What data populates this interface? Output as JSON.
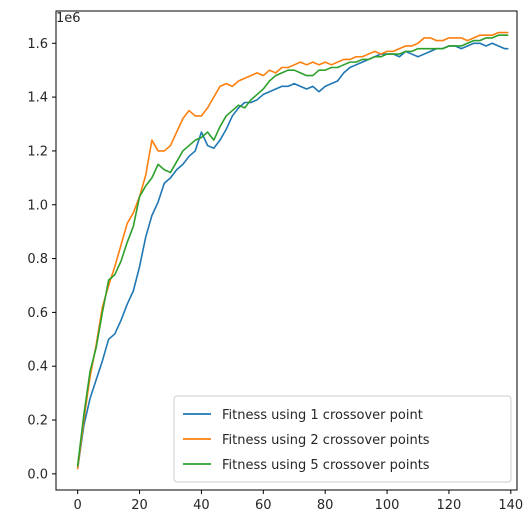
{
  "chart_data": {
    "type": "line",
    "title": "",
    "xlabel": "",
    "ylabel": "",
    "y_offset_label": "1e6",
    "y_scale": 1000000,
    "xlim": [
      -7,
      142
    ],
    "ylim": [
      -0.06,
      1.72
    ],
    "xticks": [
      0,
      20,
      40,
      60,
      80,
      100,
      120,
      140
    ],
    "yticks": [
      0.0,
      0.2,
      0.4,
      0.6,
      0.8,
      1.0,
      1.2,
      1.4,
      1.6
    ],
    "ytick_labels": [
      "0.0",
      "0.2",
      "0.4",
      "0.6",
      "0.8",
      "1.0",
      "1.2",
      "1.4",
      "1.6"
    ],
    "grid": false,
    "legend_position": "lower-right",
    "series": [
      {
        "name": "Fitness using 1 crossover point",
        "color": "#1f77b4",
        "x": [
          0,
          2,
          4,
          6,
          8,
          10,
          12,
          14,
          16,
          18,
          20,
          22,
          24,
          26,
          28,
          30,
          32,
          34,
          36,
          38,
          40,
          42,
          44,
          46,
          48,
          50,
          52,
          54,
          56,
          58,
          60,
          62,
          64,
          66,
          68,
          70,
          72,
          74,
          76,
          78,
          80,
          82,
          84,
          86,
          88,
          90,
          92,
          94,
          96,
          98,
          100,
          102,
          104,
          106,
          108,
          110,
          112,
          114,
          116,
          118,
          120,
          122,
          124,
          126,
          128,
          130,
          132,
          134,
          136,
          138,
          139
        ],
        "values": [
          0.02,
          0.18,
          0.28,
          0.35,
          0.42,
          0.5,
          0.52,
          0.57,
          0.63,
          0.68,
          0.77,
          0.88,
          0.96,
          1.01,
          1.08,
          1.1,
          1.13,
          1.15,
          1.18,
          1.2,
          1.27,
          1.22,
          1.21,
          1.24,
          1.28,
          1.33,
          1.36,
          1.38,
          1.38,
          1.39,
          1.41,
          1.42,
          1.43,
          1.44,
          1.44,
          1.45,
          1.44,
          1.43,
          1.44,
          1.42,
          1.44,
          1.45,
          1.46,
          1.49,
          1.51,
          1.52,
          1.53,
          1.54,
          1.55,
          1.56,
          1.56,
          1.56,
          1.55,
          1.57,
          1.56,
          1.55,
          1.56,
          1.57,
          1.58,
          1.58,
          1.59,
          1.59,
          1.58,
          1.59,
          1.6,
          1.6,
          1.59,
          1.6,
          1.59,
          1.58,
          1.58
        ]
      },
      {
        "name": "Fitness using 2 crossover points",
        "color": "#ff7f0e",
        "x": [
          0,
          2,
          4,
          6,
          8,
          10,
          12,
          14,
          16,
          18,
          20,
          22,
          24,
          26,
          28,
          30,
          32,
          34,
          36,
          38,
          40,
          42,
          44,
          46,
          48,
          50,
          52,
          54,
          56,
          58,
          60,
          62,
          64,
          66,
          68,
          70,
          72,
          74,
          76,
          78,
          80,
          82,
          84,
          86,
          88,
          90,
          92,
          94,
          96,
          98,
          100,
          102,
          104,
          106,
          108,
          110,
          112,
          114,
          116,
          118,
          120,
          122,
          124,
          126,
          128,
          130,
          132,
          134,
          136,
          138,
          139
        ],
        "values": [
          0.02,
          0.2,
          0.36,
          0.48,
          0.62,
          0.7,
          0.77,
          0.85,
          0.93,
          0.97,
          1.03,
          1.11,
          1.24,
          1.2,
          1.2,
          1.22,
          1.27,
          1.32,
          1.35,
          1.33,
          1.33,
          1.36,
          1.4,
          1.44,
          1.45,
          1.44,
          1.46,
          1.47,
          1.48,
          1.49,
          1.48,
          1.5,
          1.49,
          1.51,
          1.51,
          1.52,
          1.53,
          1.52,
          1.53,
          1.52,
          1.53,
          1.52,
          1.53,
          1.54,
          1.54,
          1.55,
          1.55,
          1.56,
          1.57,
          1.56,
          1.57,
          1.57,
          1.58,
          1.59,
          1.59,
          1.6,
          1.62,
          1.62,
          1.61,
          1.61,
          1.62,
          1.62,
          1.62,
          1.61,
          1.62,
          1.63,
          1.63,
          1.63,
          1.64,
          1.64,
          1.64
        ]
      },
      {
        "name": "Fitness using 5 crossover points",
        "color": "#2ca02c",
        "x": [
          0,
          2,
          4,
          6,
          8,
          10,
          12,
          14,
          16,
          18,
          20,
          22,
          24,
          26,
          28,
          30,
          32,
          34,
          36,
          38,
          40,
          42,
          44,
          46,
          48,
          50,
          52,
          54,
          56,
          58,
          60,
          62,
          64,
          66,
          68,
          70,
          72,
          74,
          76,
          78,
          80,
          82,
          84,
          86,
          88,
          90,
          92,
          94,
          96,
          98,
          100,
          102,
          104,
          106,
          108,
          110,
          112,
          114,
          116,
          118,
          120,
          122,
          124,
          126,
          128,
          130,
          132,
          134,
          136,
          138,
          139
        ],
        "values": [
          0.03,
          0.22,
          0.38,
          0.47,
          0.6,
          0.72,
          0.74,
          0.79,
          0.86,
          0.92,
          1.03,
          1.07,
          1.1,
          1.15,
          1.13,
          1.12,
          1.16,
          1.2,
          1.22,
          1.24,
          1.25,
          1.27,
          1.24,
          1.29,
          1.33,
          1.35,
          1.37,
          1.36,
          1.39,
          1.41,
          1.43,
          1.46,
          1.48,
          1.49,
          1.5,
          1.5,
          1.49,
          1.48,
          1.48,
          1.5,
          1.5,
          1.51,
          1.51,
          1.52,
          1.53,
          1.53,
          1.54,
          1.54,
          1.55,
          1.55,
          1.56,
          1.56,
          1.56,
          1.57,
          1.57,
          1.58,
          1.58,
          1.58,
          1.58,
          1.58,
          1.59,
          1.59,
          1.59,
          1.6,
          1.61,
          1.61,
          1.62,
          1.62,
          1.63,
          1.63,
          1.63
        ]
      }
    ]
  }
}
